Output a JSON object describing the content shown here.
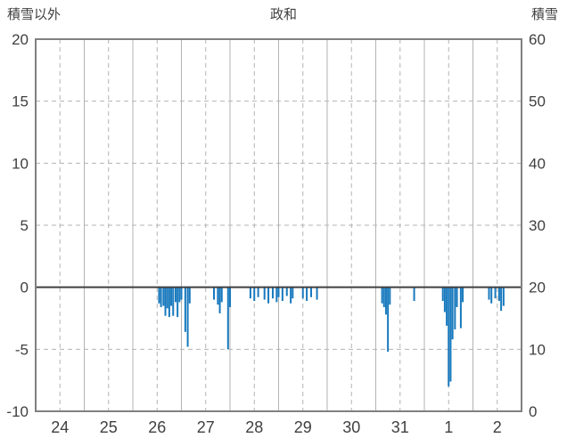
{
  "chart_data": {
    "type": "bar",
    "title": "政和",
    "left_axis_label": "積雪以外",
    "right_axis_label": "積雪",
    "x_labels": [
      "24",
      "25",
      "26",
      "27",
      "28",
      "29",
      "30",
      "31",
      "1",
      "2"
    ],
    "left_axis": {
      "min": -10,
      "max": 20,
      "ticks": [
        20,
        15,
        10,
        5,
        0,
        -5,
        -10
      ]
    },
    "right_axis": {
      "min": 0,
      "max": 60,
      "ticks": [
        60,
        50,
        40,
        30,
        20,
        10,
        0
      ]
    },
    "bar_color": "#1879bd",
    "grid_color": "#b3b3b3",
    "border_color": "#808080",
    "zero_line_color": "#404040",
    "text_color": "#404040",
    "bars_format": "[days_from_24th_00h, value_on_left_axis]",
    "bars": [
      [
        2.54,
        -1.3
      ],
      [
        2.58,
        -1.6
      ],
      [
        2.63,
        -1.5
      ],
      [
        2.67,
        -2.3
      ],
      [
        2.71,
        -1.7
      ],
      [
        2.75,
        -2.4
      ],
      [
        2.79,
        -1.5
      ],
      [
        2.83,
        -2.3
      ],
      [
        2.88,
        -1.2
      ],
      [
        2.92,
        -2.4
      ],
      [
        2.96,
        -1.2
      ],
      [
        3.0,
        -1.0
      ],
      [
        3.08,
        -3.6
      ],
      [
        3.13,
        -4.8
      ],
      [
        3.17,
        -1.3
      ],
      [
        3.67,
        -1.0
      ],
      [
        3.75,
        -1.4
      ],
      [
        3.79,
        -2.1
      ],
      [
        3.83,
        -1.2
      ],
      [
        3.96,
        -5.0
      ],
      [
        4.0,
        -1.6
      ],
      [
        4.42,
        -0.9
      ],
      [
        4.5,
        -1.1
      ],
      [
        4.58,
        -0.8
      ],
      [
        4.71,
        -1.0
      ],
      [
        4.79,
        -1.3
      ],
      [
        4.88,
        -0.9
      ],
      [
        4.96,
        -1.2
      ],
      [
        5.0,
        -0.8
      ],
      [
        5.08,
        -1.1
      ],
      [
        5.17,
        -0.7
      ],
      [
        5.25,
        -1.3
      ],
      [
        5.29,
        -0.9
      ],
      [
        5.5,
        -0.9
      ],
      [
        5.58,
        -1.1
      ],
      [
        5.67,
        -0.8
      ],
      [
        5.79,
        -1.0
      ],
      [
        7.13,
        -1.3
      ],
      [
        7.17,
        -1.6
      ],
      [
        7.21,
        -2.2
      ],
      [
        7.25,
        -5.2
      ],
      [
        7.29,
        -1.4
      ],
      [
        7.79,
        -1.1
      ],
      [
        8.38,
        -1.1
      ],
      [
        8.42,
        -2.0
      ],
      [
        8.46,
        -3.1
      ],
      [
        8.5,
        -8.0
      ],
      [
        8.54,
        -7.6
      ],
      [
        8.58,
        -4.2
      ],
      [
        8.63,
        -3.4
      ],
      [
        8.67,
        -1.6
      ],
      [
        8.75,
        -3.3
      ],
      [
        8.79,
        -1.2
      ],
      [
        9.33,
        -1.0
      ],
      [
        9.38,
        -1.3
      ],
      [
        9.46,
        -0.9
      ],
      [
        9.54,
        -1.1
      ],
      [
        9.58,
        -1.9
      ],
      [
        9.63,
        -1.5
      ]
    ]
  }
}
